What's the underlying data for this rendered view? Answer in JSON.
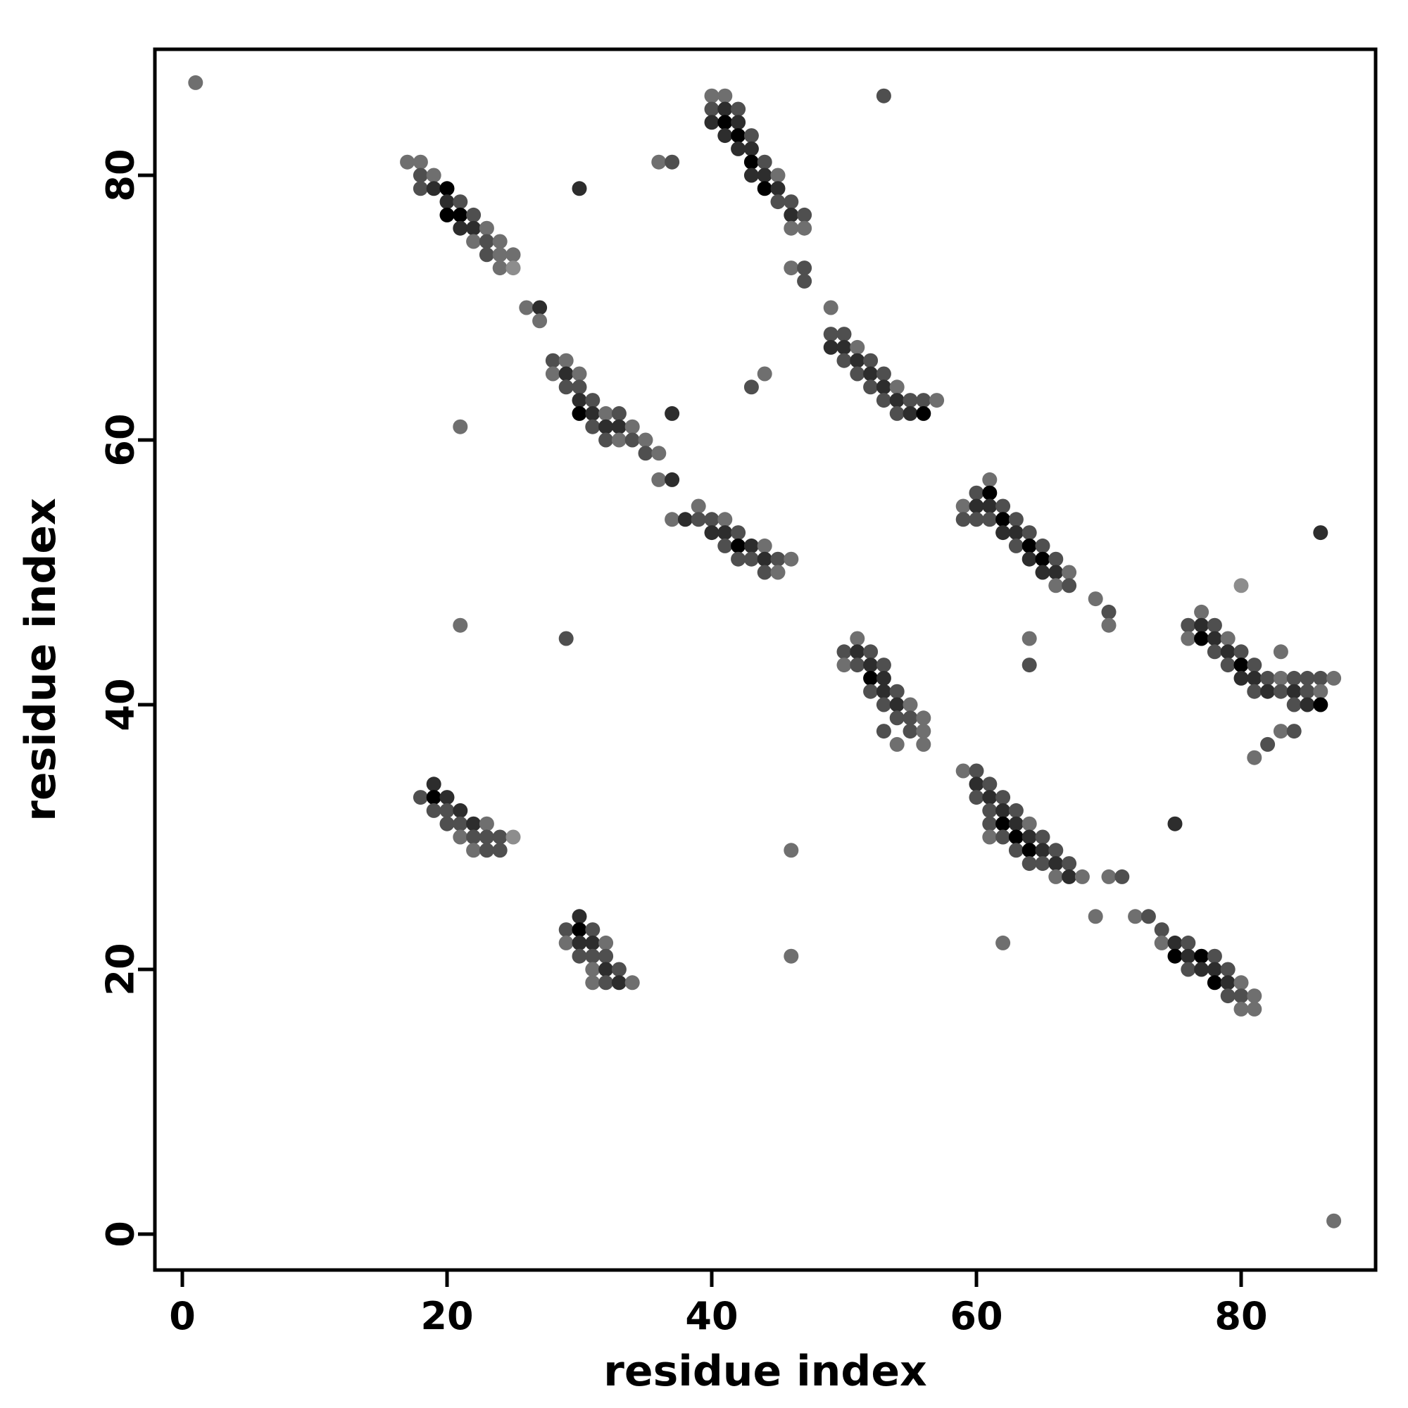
{
  "figure": {
    "title": "",
    "background": "#ffffff"
  },
  "chart_data": {
    "type": "scatter",
    "title": "",
    "xlabel": "residue index",
    "ylabel": "residue index",
    "xlim": [
      -2.1,
      90.2
    ],
    "ylim": [
      -2.7,
      89.5
    ],
    "x_ticks": [
      0,
      20,
      40,
      60,
      80
    ],
    "y_ticks": [
      0,
      20,
      40,
      60,
      80
    ],
    "grid": false,
    "legend": "none",
    "frame_color": "#000000",
    "tick_color": "#000000",
    "point_radius": 10.5,
    "shades": [
      "#000000",
      "#2d2d2d",
      "#4f4f4f",
      "#6f6f6f",
      "#8d8d8d"
    ],
    "points_format": "[x, y, shade_index]",
    "points": [
      [
        1,
        87,
        3
      ],
      [
        53,
        86,
        2
      ],
      [
        41,
        86,
        3
      ],
      [
        40,
        86,
        3
      ],
      [
        40,
        85,
        2
      ],
      [
        41,
        85,
        1
      ],
      [
        42,
        85,
        2
      ],
      [
        40,
        84,
        1
      ],
      [
        41,
        84,
        0
      ],
      [
        42,
        84,
        1
      ],
      [
        41,
        83,
        1
      ],
      [
        42,
        83,
        0
      ],
      [
        43,
        83,
        2
      ],
      [
        42,
        82,
        1
      ],
      [
        43,
        82,
        1
      ],
      [
        36,
        81,
        3
      ],
      [
        37,
        81,
        2
      ],
      [
        17,
        81,
        3
      ],
      [
        18,
        81,
        3
      ],
      [
        43,
        81,
        0
      ],
      [
        44,
        81,
        2
      ],
      [
        18,
        80,
        2
      ],
      [
        19,
        80,
        3
      ],
      [
        43,
        80,
        1
      ],
      [
        44,
        80,
        1
      ],
      [
        45,
        80,
        3
      ],
      [
        18,
        79,
        2
      ],
      [
        19,
        79,
        1
      ],
      [
        20,
        79,
        0
      ],
      [
        30,
        79,
        1
      ],
      [
        44,
        79,
        0
      ],
      [
        45,
        79,
        1
      ],
      [
        20,
        78,
        1
      ],
      [
        21,
        78,
        2
      ],
      [
        45,
        78,
        2
      ],
      [
        46,
        78,
        2
      ],
      [
        20,
        77,
        0
      ],
      [
        21,
        77,
        0
      ],
      [
        22,
        77,
        2
      ],
      [
        46,
        77,
        1
      ],
      [
        47,
        77,
        2
      ],
      [
        21,
        76,
        1
      ],
      [
        22,
        76,
        1
      ],
      [
        23,
        76,
        3
      ],
      [
        46,
        76,
        3
      ],
      [
        47,
        76,
        3
      ],
      [
        22,
        75,
        3
      ],
      [
        23,
        75,
        2
      ],
      [
        24,
        75,
        3
      ],
      [
        23,
        74,
        2
      ],
      [
        24,
        74,
        3
      ],
      [
        25,
        74,
        3
      ],
      [
        24,
        73,
        3
      ],
      [
        25,
        73,
        4
      ],
      [
        46,
        73,
        3
      ],
      [
        47,
        73,
        2
      ],
      [
        47,
        72,
        2
      ],
      [
        49,
        70,
        3
      ],
      [
        26,
        70,
        3
      ],
      [
        27,
        70,
        1
      ],
      [
        27,
        69,
        3
      ],
      [
        49,
        68,
        2
      ],
      [
        50,
        68,
        2
      ],
      [
        28,
        66,
        2
      ],
      [
        29,
        66,
        3
      ],
      [
        49,
        67,
        1
      ],
      [
        50,
        67,
        1
      ],
      [
        51,
        67,
        3
      ],
      [
        28,
        65,
        3
      ],
      [
        29,
        65,
        1
      ],
      [
        30,
        65,
        3
      ],
      [
        50,
        66,
        2
      ],
      [
        51,
        66,
        1
      ],
      [
        52,
        66,
        2
      ],
      [
        29,
        64,
        2
      ],
      [
        30,
        64,
        2
      ],
      [
        43,
        64,
        2
      ],
      [
        44,
        65,
        3
      ],
      [
        51,
        65,
        2
      ],
      [
        52,
        65,
        1
      ],
      [
        53,
        65,
        2
      ],
      [
        30,
        63,
        1
      ],
      [
        31,
        63,
        2
      ],
      [
        52,
        64,
        2
      ],
      [
        53,
        64,
        1
      ],
      [
        54,
        64,
        3
      ],
      [
        30,
        62,
        0
      ],
      [
        31,
        62,
        1
      ],
      [
        32,
        62,
        3
      ],
      [
        33,
        62,
        2
      ],
      [
        37,
        62,
        1
      ],
      [
        53,
        63,
        2
      ],
      [
        54,
        63,
        1
      ],
      [
        55,
        63,
        2
      ],
      [
        56,
        63,
        2
      ],
      [
        57,
        63,
        3
      ],
      [
        21,
        61,
        3
      ],
      [
        31,
        61,
        2
      ],
      [
        32,
        61,
        1
      ],
      [
        33,
        61,
        1
      ],
      [
        34,
        61,
        3
      ],
      [
        54,
        62,
        2
      ],
      [
        55,
        62,
        1
      ],
      [
        56,
        62,
        0
      ],
      [
        32,
        60,
        2
      ],
      [
        33,
        60,
        3
      ],
      [
        34,
        60,
        2
      ],
      [
        35,
        60,
        3
      ],
      [
        35,
        59,
        2
      ],
      [
        36,
        59,
        3
      ],
      [
        36,
        57,
        3
      ],
      [
        37,
        57,
        1
      ],
      [
        61,
        57,
        3
      ],
      [
        60,
        56,
        2
      ],
      [
        61,
        56,
        0
      ],
      [
        39,
        55,
        3
      ],
      [
        59,
        55,
        3
      ],
      [
        60,
        55,
        1
      ],
      [
        61,
        55,
        1
      ],
      [
        62,
        55,
        2
      ],
      [
        37,
        54,
        3
      ],
      [
        38,
        54,
        1
      ],
      [
        39,
        54,
        2
      ],
      [
        40,
        54,
        2
      ],
      [
        41,
        54,
        3
      ],
      [
        59,
        54,
        2
      ],
      [
        60,
        54,
        2
      ],
      [
        61,
        54,
        2
      ],
      [
        62,
        54,
        0
      ],
      [
        63,
        54,
        2
      ],
      [
        40,
        53,
        1
      ],
      [
        41,
        53,
        1
      ],
      [
        42,
        53,
        2
      ],
      [
        62,
        53,
        1
      ],
      [
        63,
        53,
        1
      ],
      [
        64,
        53,
        2
      ],
      [
        86,
        53,
        1
      ],
      [
        41,
        52,
        2
      ],
      [
        42,
        52,
        0
      ],
      [
        43,
        52,
        1
      ],
      [
        44,
        52,
        3
      ],
      [
        63,
        52,
        2
      ],
      [
        64,
        52,
        0
      ],
      [
        65,
        52,
        2
      ],
      [
        42,
        51,
        2
      ],
      [
        43,
        51,
        2
      ],
      [
        44,
        51,
        1
      ],
      [
        45,
        51,
        2
      ],
      [
        46,
        51,
        3
      ],
      [
        64,
        51,
        1
      ],
      [
        65,
        51,
        0
      ],
      [
        66,
        51,
        2
      ],
      [
        44,
        50,
        2
      ],
      [
        45,
        50,
        3
      ],
      [
        65,
        50,
        1
      ],
      [
        66,
        50,
        1
      ],
      [
        67,
        50,
        3
      ],
      [
        66,
        49,
        3
      ],
      [
        67,
        49,
        2
      ],
      [
        80,
        49,
        4
      ],
      [
        69,
        48,
        3
      ],
      [
        70,
        47,
        2
      ],
      [
        77,
        47,
        3
      ],
      [
        70,
        46,
        3
      ],
      [
        21,
        46,
        3
      ],
      [
        76,
        46,
        2
      ],
      [
        77,
        46,
        1
      ],
      [
        78,
        46,
        2
      ],
      [
        29,
        45,
        2
      ],
      [
        51,
        45,
        3
      ],
      [
        64,
        45,
        3
      ],
      [
        76,
        45,
        3
      ],
      [
        77,
        45,
        0
      ],
      [
        78,
        45,
        1
      ],
      [
        79,
        45,
        3
      ],
      [
        50,
        44,
        2
      ],
      [
        51,
        44,
        1
      ],
      [
        52,
        44,
        2
      ],
      [
        78,
        44,
        2
      ],
      [
        79,
        44,
        1
      ],
      [
        80,
        44,
        2
      ],
      [
        83,
        44,
        3
      ],
      [
        50,
        43,
        3
      ],
      [
        51,
        43,
        2
      ],
      [
        52,
        43,
        1
      ],
      [
        53,
        43,
        2
      ],
      [
        64,
        43,
        2
      ],
      [
        79,
        43,
        2
      ],
      [
        80,
        43,
        0
      ],
      [
        81,
        43,
        2
      ],
      [
        52,
        42,
        0
      ],
      [
        53,
        42,
        1
      ],
      [
        80,
        42,
        1
      ],
      [
        81,
        42,
        1
      ],
      [
        82,
        42,
        2
      ],
      [
        83,
        42,
        3
      ],
      [
        84,
        42,
        2
      ],
      [
        85,
        42,
        2
      ],
      [
        86,
        42,
        2
      ],
      [
        87,
        42,
        3
      ],
      [
        52,
        41,
        2
      ],
      [
        53,
        41,
        1
      ],
      [
        54,
        41,
        2
      ],
      [
        81,
        41,
        2
      ],
      [
        82,
        41,
        1
      ],
      [
        83,
        41,
        2
      ],
      [
        84,
        41,
        1
      ],
      [
        85,
        41,
        2
      ],
      [
        86,
        41,
        3
      ],
      [
        53,
        40,
        2
      ],
      [
        54,
        40,
        1
      ],
      [
        55,
        40,
        3
      ],
      [
        84,
        40,
        2
      ],
      [
        85,
        40,
        1
      ],
      [
        86,
        40,
        0
      ],
      [
        54,
        39,
        2
      ],
      [
        55,
        39,
        2
      ],
      [
        56,
        39,
        3
      ],
      [
        55,
        38,
        2
      ],
      [
        56,
        38,
        3
      ],
      [
        53,
        38,
        2
      ],
      [
        83,
        38,
        3
      ],
      [
        84,
        38,
        2
      ],
      [
        54,
        37,
        3
      ],
      [
        56,
        37,
        3
      ],
      [
        82,
        37,
        2
      ],
      [
        81,
        36,
        3
      ],
      [
        59,
        35,
        3
      ],
      [
        60,
        35,
        2
      ],
      [
        60,
        34,
        1
      ],
      [
        61,
        34,
        2
      ],
      [
        19,
        34,
        1
      ],
      [
        18,
        33,
        2
      ],
      [
        19,
        33,
        0
      ],
      [
        20,
        33,
        1
      ],
      [
        60,
        33,
        2
      ],
      [
        61,
        33,
        1
      ],
      [
        62,
        33,
        2
      ],
      [
        19,
        32,
        2
      ],
      [
        20,
        32,
        2
      ],
      [
        21,
        32,
        1
      ],
      [
        61,
        32,
        2
      ],
      [
        62,
        32,
        1
      ],
      [
        63,
        32,
        2
      ],
      [
        20,
        31,
        2
      ],
      [
        21,
        31,
        2
      ],
      [
        22,
        31,
        1
      ],
      [
        23,
        31,
        3
      ],
      [
        61,
        31,
        2
      ],
      [
        62,
        31,
        0
      ],
      [
        63,
        31,
        1
      ],
      [
        64,
        31,
        3
      ],
      [
        75,
        31,
        1
      ],
      [
        21,
        30,
        3
      ],
      [
        22,
        30,
        2
      ],
      [
        23,
        30,
        2
      ],
      [
        24,
        30,
        2
      ],
      [
        25,
        30,
        4
      ],
      [
        61,
        30,
        3
      ],
      [
        62,
        30,
        2
      ],
      [
        63,
        30,
        0
      ],
      [
        64,
        30,
        1
      ],
      [
        65,
        30,
        2
      ],
      [
        22,
        29,
        3
      ],
      [
        23,
        29,
        2
      ],
      [
        24,
        29,
        2
      ],
      [
        46,
        29,
        3
      ],
      [
        63,
        29,
        2
      ],
      [
        64,
        29,
        0
      ],
      [
        65,
        29,
        1
      ],
      [
        66,
        29,
        2
      ],
      [
        64,
        28,
        2
      ],
      [
        65,
        28,
        2
      ],
      [
        66,
        28,
        1
      ],
      [
        67,
        28,
        2
      ],
      [
        66,
        27,
        3
      ],
      [
        67,
        27,
        1
      ],
      [
        68,
        27,
        3
      ],
      [
        70,
        27,
        3
      ],
      [
        71,
        27,
        2
      ],
      [
        69,
        24,
        3
      ],
      [
        30,
        24,
        1
      ],
      [
        72,
        24,
        3
      ],
      [
        73,
        24,
        2
      ],
      [
        29,
        23,
        2
      ],
      [
        30,
        23,
        0
      ],
      [
        31,
        23,
        2
      ],
      [
        74,
        23,
        2
      ],
      [
        29,
        22,
        3
      ],
      [
        30,
        22,
        1
      ],
      [
        31,
        22,
        1
      ],
      [
        32,
        22,
        3
      ],
      [
        62,
        22,
        3
      ],
      [
        74,
        22,
        3
      ],
      [
        75,
        22,
        1
      ],
      [
        76,
        22,
        2
      ],
      [
        30,
        21,
        2
      ],
      [
        31,
        21,
        2
      ],
      [
        32,
        21,
        2
      ],
      [
        46,
        21,
        3
      ],
      [
        75,
        21,
        0
      ],
      [
        76,
        21,
        1
      ],
      [
        77,
        21,
        0
      ],
      [
        78,
        21,
        2
      ],
      [
        31,
        20,
        3
      ],
      [
        32,
        20,
        1
      ],
      [
        33,
        20,
        2
      ],
      [
        76,
        20,
        2
      ],
      [
        77,
        20,
        1
      ],
      [
        78,
        20,
        1
      ],
      [
        79,
        20,
        2
      ],
      [
        31,
        19,
        3
      ],
      [
        32,
        19,
        2
      ],
      [
        33,
        19,
        1
      ],
      [
        34,
        19,
        3
      ],
      [
        78,
        19,
        0
      ],
      [
        79,
        19,
        1
      ],
      [
        80,
        19,
        3
      ],
      [
        79,
        18,
        2
      ],
      [
        80,
        18,
        2
      ],
      [
        81,
        18,
        3
      ],
      [
        80,
        17,
        3
      ],
      [
        81,
        17,
        3
      ],
      [
        87,
        1,
        3
      ]
    ]
  }
}
